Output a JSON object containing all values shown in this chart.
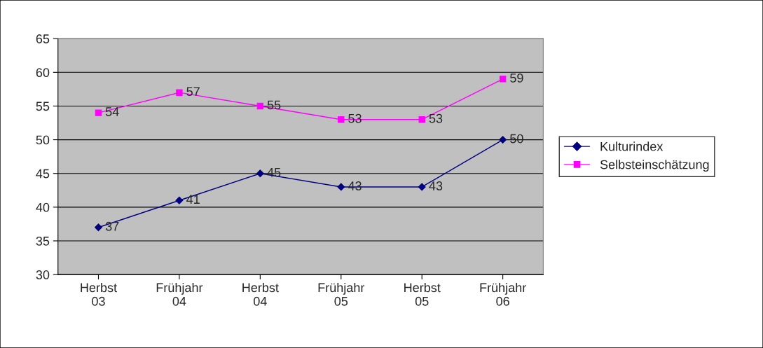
{
  "chart_data": {
    "type": "line",
    "categories": [
      "Herbst\n03",
      "Frühjahr\n04",
      "Herbst\n04",
      "Frühjahr\n05",
      "Herbst\n05",
      "Frühjahr\n06"
    ],
    "series": [
      {
        "name": "Kulturindex",
        "color": "#000080",
        "marker": "diamond",
        "values": [
          37,
          41,
          45,
          43,
          43,
          50
        ]
      },
      {
        "name": "Selbsteinschätzung",
        "color": "#ff00ff",
        "marker": "square",
        "values": [
          54,
          57,
          55,
          53,
          53,
          59
        ]
      }
    ],
    "ylim": [
      30,
      65
    ],
    "yticks": [
      30,
      35,
      40,
      45,
      50,
      55,
      60,
      65
    ],
    "grid": "y",
    "legend": "right",
    "data_labels": true
  }
}
